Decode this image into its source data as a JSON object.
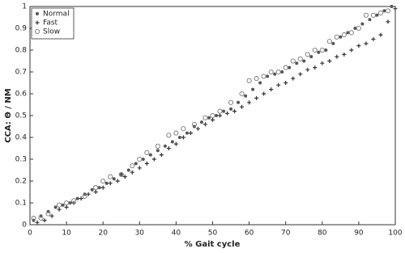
{
  "chart_data": {
    "type": "scatter",
    "xlabel": "% Gait cycle",
    "ylabel": "CCA: Θ / NM",
    "xlim": [
      0,
      100
    ],
    "ylim": [
      0,
      1
    ],
    "xticks": [
      0,
      10,
      20,
      30,
      40,
      50,
      60,
      70,
      80,
      90,
      100
    ],
    "yticks": [
      0,
      0.1,
      0.2,
      0.3,
      0.4,
      0.5,
      0.6,
      0.7,
      0.8,
      0.9,
      1
    ],
    "legend": "top-left",
    "series": [
      {
        "name": "Normal",
        "color": "#555555",
        "marker": "dot",
        "x": [
          1,
          3,
          5,
          7,
          9,
          11,
          13,
          15,
          17,
          19,
          21,
          23,
          25,
          27,
          29,
          31,
          33,
          35,
          37,
          39,
          41,
          43,
          45,
          47,
          49,
          51,
          53,
          55,
          57,
          59,
          61,
          63,
          65,
          67,
          69,
          71,
          73,
          75,
          77,
          79,
          81,
          83,
          85,
          87,
          89,
          91,
          93,
          95,
          97,
          99
        ],
        "values": [
          0.02,
          0.04,
          0.06,
          0.08,
          0.09,
          0.1,
          0.12,
          0.14,
          0.16,
          0.17,
          0.19,
          0.21,
          0.23,
          0.25,
          0.28,
          0.3,
          0.32,
          0.34,
          0.36,
          0.38,
          0.4,
          0.42,
          0.45,
          0.47,
          0.49,
          0.5,
          0.52,
          0.53,
          0.56,
          0.59,
          0.62,
          0.65,
          0.68,
          0.69,
          0.7,
          0.72,
          0.74,
          0.75,
          0.77,
          0.79,
          0.8,
          0.83,
          0.86,
          0.88,
          0.9,
          0.92,
          0.94,
          0.96,
          0.98,
          1.0
        ]
      },
      {
        "name": "Fast",
        "color": "#333333",
        "marker": "plus",
        "x": [
          2,
          4,
          6,
          8,
          10,
          12,
          14,
          16,
          18,
          20,
          22,
          24,
          26,
          28,
          30,
          32,
          34,
          36,
          38,
          40,
          42,
          44,
          46,
          48,
          50,
          52,
          54,
          56,
          58,
          60,
          62,
          64,
          66,
          68,
          70,
          72,
          74,
          76,
          78,
          80,
          82,
          84,
          86,
          88,
          90,
          92,
          94,
          96,
          98,
          100
        ],
        "values": [
          0.01,
          0.02,
          0.04,
          0.07,
          0.08,
          0.1,
          0.12,
          0.14,
          0.15,
          0.17,
          0.19,
          0.2,
          0.22,
          0.24,
          0.26,
          0.28,
          0.3,
          0.32,
          0.35,
          0.37,
          0.4,
          0.42,
          0.44,
          0.46,
          0.48,
          0.5,
          0.51,
          0.52,
          0.54,
          0.56,
          0.58,
          0.6,
          0.62,
          0.64,
          0.65,
          0.67,
          0.69,
          0.71,
          0.72,
          0.74,
          0.75,
          0.77,
          0.78,
          0.8,
          0.82,
          0.83,
          0.85,
          0.87,
          0.93,
          0.99
        ]
      },
      {
        "name": "Slow",
        "color": "#777777",
        "marker": "circle",
        "x": [
          1,
          3,
          5,
          8,
          10,
          12,
          15,
          18,
          20,
          22,
          25,
          28,
          30,
          32,
          35,
          38,
          40,
          42,
          45,
          48,
          50,
          52,
          55,
          58,
          60,
          62,
          64,
          66,
          68,
          70,
          72,
          74,
          76,
          78,
          80,
          82,
          84,
          86,
          88,
          90,
          92,
          94,
          96,
          98
        ],
        "values": [
          0.03,
          0.03,
          0.05,
          0.09,
          0.1,
          0.11,
          0.13,
          0.17,
          0.2,
          0.22,
          0.23,
          0.27,
          0.3,
          0.33,
          0.36,
          0.41,
          0.42,
          0.44,
          0.46,
          0.49,
          0.5,
          0.52,
          0.56,
          0.6,
          0.66,
          0.67,
          0.68,
          0.7,
          0.7,
          0.72,
          0.75,
          0.76,
          0.78,
          0.8,
          0.8,
          0.84,
          0.86,
          0.87,
          0.88,
          0.9,
          0.96,
          0.96,
          0.97,
          0.98
        ]
      }
    ]
  }
}
